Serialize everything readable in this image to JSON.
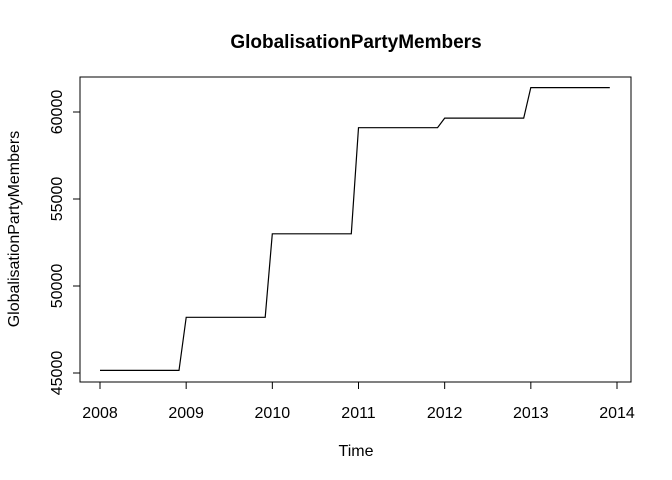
{
  "chart_data": {
    "type": "line",
    "title": "GlobalisationPartyMembers",
    "xlabel": "Time",
    "ylabel": "GlobalisationPartyMembers",
    "xlim": [
      2008,
      2014
    ],
    "ylim": [
      45000,
      61500
    ],
    "x_ticks": [
      2008,
      2009,
      2010,
      2011,
      2012,
      2013,
      2014
    ],
    "y_ticks": [
      45000,
      50000,
      55000,
      60000
    ],
    "grid": false,
    "legend": "none",
    "series": [
      {
        "x": [
          2008.0,
          2008.917,
          2009.0,
          2009.917,
          2010.0,
          2010.917,
          2011.0,
          2011.917,
          2012.0,
          2012.917,
          2013.0,
          2013.917
        ],
        "values": [
          45150,
          45150,
          48200,
          48200,
          53000,
          53000,
          59100,
          59100,
          59650,
          59650,
          61400,
          61400
        ]
      }
    ]
  }
}
